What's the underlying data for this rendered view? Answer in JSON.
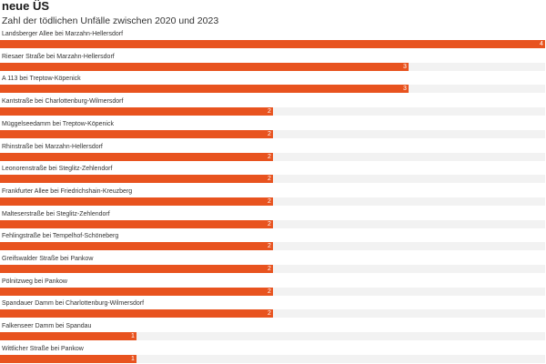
{
  "header": {
    "title": "neue ÜS",
    "subtitle": "Zahl der tödlichen Unfälle zwischen 2020 und 2023"
  },
  "colors": {
    "bar": "#e8531f",
    "track": "#f2f2f2"
  },
  "chart_data": {
    "type": "bar",
    "orientation": "horizontal",
    "xlim": [
      0,
      4
    ],
    "grid": false,
    "categories": [
      "Landsberger Allee bei Marzahn-Hellersdorf",
      "Riesaer Straße bei Marzahn-Hellersdorf",
      "A 113 bei Treptow-Köpenick",
      "Kantstraße bei Charlottenburg-Wilmersdorf",
      "Müggelseedamm bei Treptow-Köpenick",
      "Rhinstraße bei Marzahn-Hellersdorf",
      "Leonorenstraße bei Steglitz-Zehlendorf",
      "Frankfurter Allee bei Friedrichshain-Kreuzberg",
      "Malteserstraße bei Steglitz-Zehlendorf",
      "Fehlingstraße bei Tempelhof-Schöneberg",
      "Greifswalder Straße bei Pankow",
      "Pölnitzweg bei Pankow",
      "Spandauer Damm bei Charlottenburg-Wilmersdorf",
      "Falkenseer Damm bei Spandau",
      "Wittlicher Straße bei Pankow"
    ],
    "values": [
      4,
      3,
      3,
      2,
      2,
      2,
      2,
      2,
      2,
      2,
      2,
      2,
      2,
      1,
      1
    ]
  }
}
